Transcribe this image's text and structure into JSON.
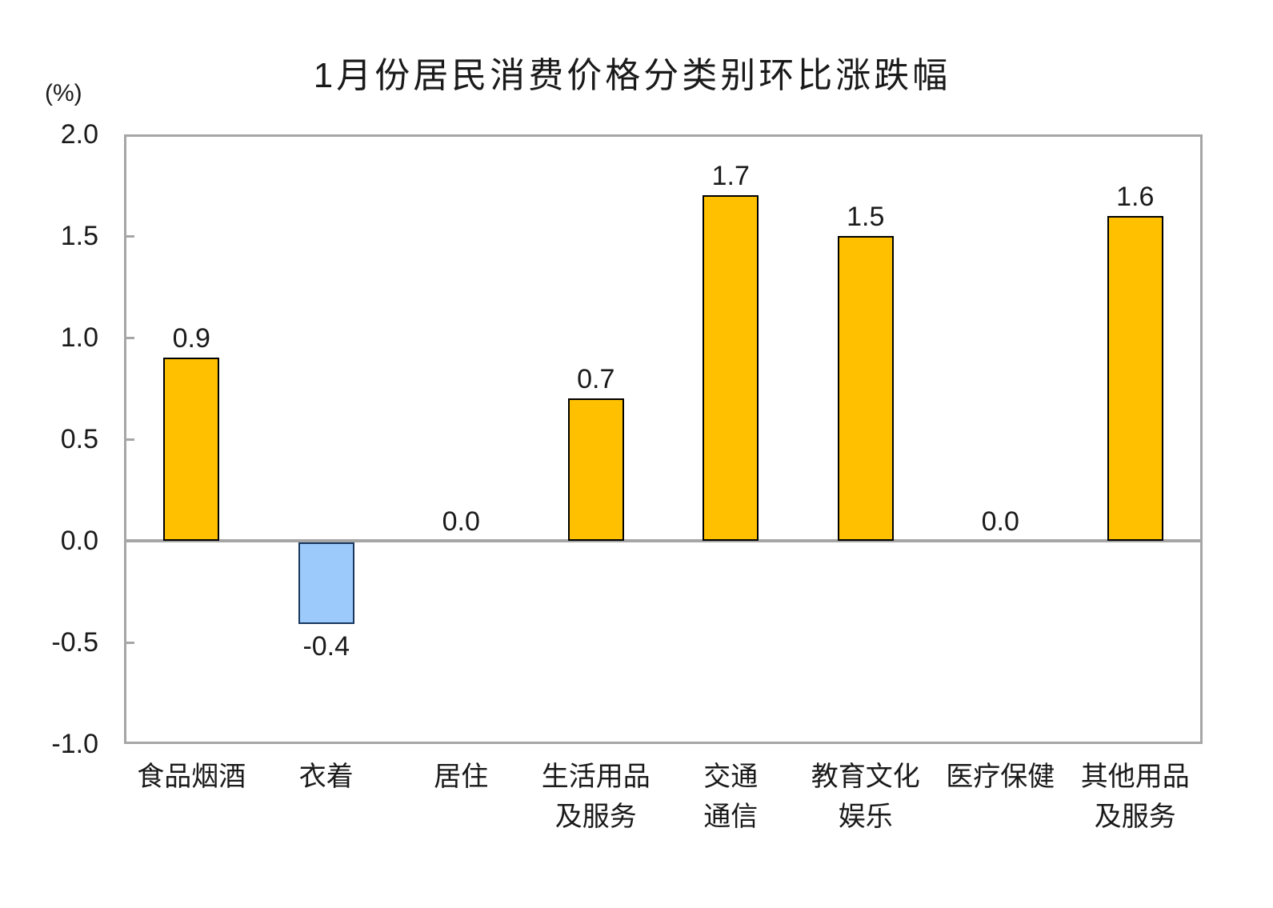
{
  "title": "1月份居民消费价格分类别环比涨跌幅",
  "y_axis": {
    "unit_label": "(%)"
  },
  "chart_data": {
    "type": "bar",
    "title": "1月份居民消费价格分类别环比涨跌幅",
    "ylabel": "(%)",
    "xlabel": "",
    "ylim": [
      -1.0,
      2.0
    ],
    "yticks": [
      2.0,
      1.5,
      1.0,
      0.5,
      0.0,
      -0.5,
      -1.0
    ],
    "ytick_labels": [
      "2.0",
      "1.5",
      "1.0",
      "0.5",
      "0.0",
      "-0.5",
      "-1.0"
    ],
    "grid": false,
    "legend": false,
    "categories": [
      "食品烟酒",
      "衣着",
      "居住",
      "生活用品\n及服务",
      "交通\n通信",
      "教育文化\n娱乐",
      "医疗保健",
      "其他用品\n及服务"
    ],
    "values": [
      0.9,
      -0.4,
      0.0,
      0.7,
      1.7,
      1.5,
      0.0,
      1.6
    ],
    "data_labels": [
      "0.9",
      "-0.4",
      "0.0",
      "0.7",
      "1.7",
      "1.5",
      "0.0",
      "1.6"
    ],
    "colors": {
      "positive_fill": "#FFC000",
      "positive_border": "#000000",
      "negative_fill": "#9CCAFA",
      "negative_border": "#17375E",
      "frame": "#A6A6A6",
      "zero_line": "#A6A6A6",
      "text": "#1A1A1A"
    }
  }
}
